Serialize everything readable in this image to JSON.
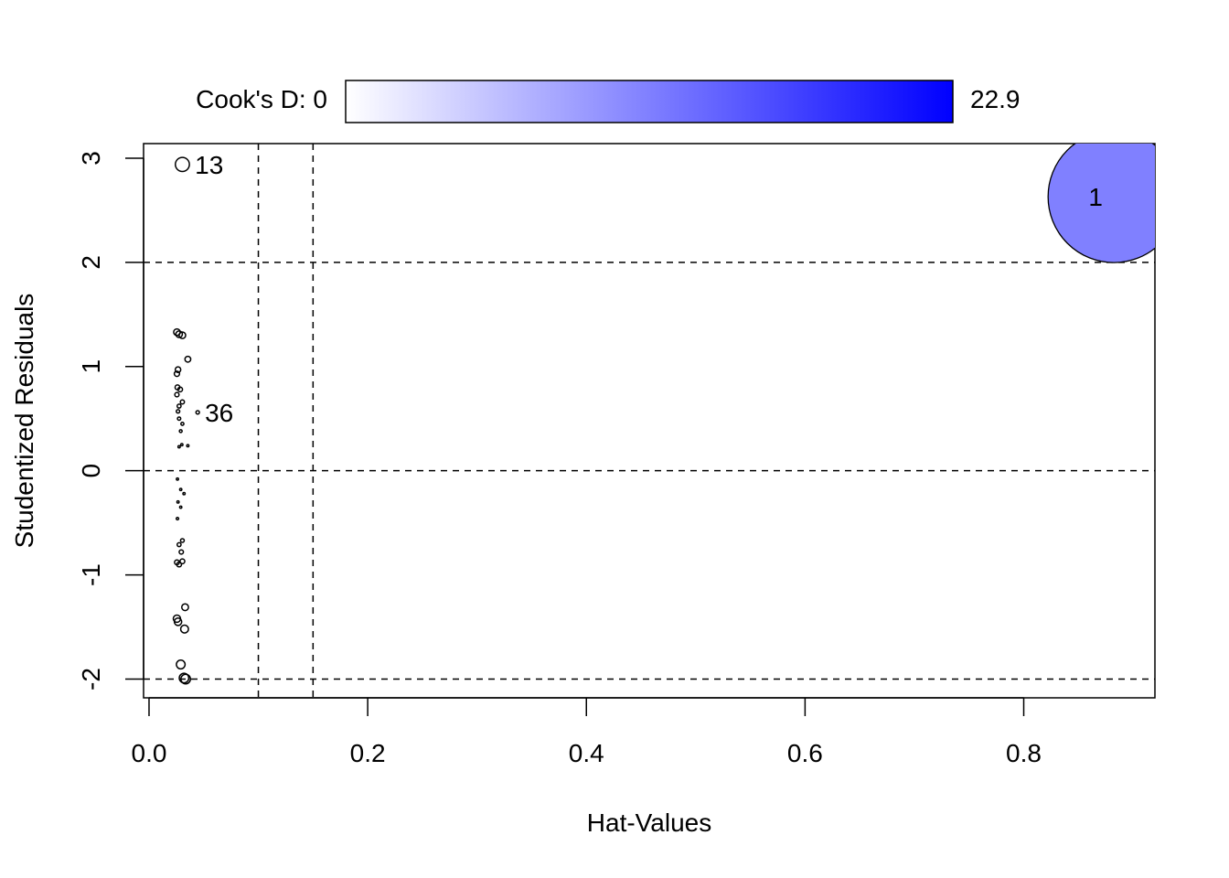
{
  "chart_data": {
    "type": "scatter",
    "xlabel": "Hat-Values",
    "ylabel": "Studentized Residuals",
    "xlim": [
      -0.005,
      0.92
    ],
    "ylim": [
      -2.18,
      3.14
    ],
    "xticks": [
      "0.0",
      "0.2",
      "0.4",
      "0.6",
      "0.8"
    ],
    "xtick_values": [
      0.0,
      0.2,
      0.4,
      0.6,
      0.8
    ],
    "yticks": [
      "-2",
      "-1",
      "0",
      "1",
      "2",
      "3"
    ],
    "ytick_values": [
      -2,
      -1,
      0,
      1,
      2,
      3
    ],
    "reference_lines": {
      "horizontal": [
        -2,
        0,
        2
      ],
      "vertical": [
        0.1,
        0.15
      ],
      "style": "dashed"
    },
    "colorbar": {
      "label": "Cook's D: 0",
      "max_label": "22.9",
      "min_value": 0,
      "max_value": 22.9,
      "color_low": "#ffffff",
      "color_high": "#0000ff",
      "placement": "top"
    },
    "point_fill_color": "#8080ff",
    "points": [
      {
        "x": 0.8825,
        "y": 2.63,
        "cooks_d": 11.4,
        "label": "1"
      },
      {
        "x": 0.0305,
        "y": 2.94,
        "cooks_d": 0.13,
        "label": "13"
      },
      {
        "x": 0.0445,
        "y": 0.56,
        "cooks_d": 0.008,
        "label": "36"
      },
      {
        "x": 0.0255,
        "y": 1.33,
        "cooks_d": 0.028
      },
      {
        "x": 0.0275,
        "y": 1.31,
        "cooks_d": 0.028
      },
      {
        "x": 0.0305,
        "y": 1.3,
        "cooks_d": 0.028
      },
      {
        "x": 0.0355,
        "y": 1.07,
        "cooks_d": 0.022
      },
      {
        "x": 0.0265,
        "y": 0.97,
        "cooks_d": 0.02
      },
      {
        "x": 0.0255,
        "y": 0.93,
        "cooks_d": 0.018
      },
      {
        "x": 0.026,
        "y": 0.8,
        "cooks_d": 0.015
      },
      {
        "x": 0.0285,
        "y": 0.78,
        "cooks_d": 0.014
      },
      {
        "x": 0.0255,
        "y": 0.73,
        "cooks_d": 0.012
      },
      {
        "x": 0.0305,
        "y": 0.66,
        "cooks_d": 0.011
      },
      {
        "x": 0.0275,
        "y": 0.62,
        "cooks_d": 0.01
      },
      {
        "x": 0.0265,
        "y": 0.57,
        "cooks_d": 0.008
      },
      {
        "x": 0.0275,
        "y": 0.5,
        "cooks_d": 0.007
      },
      {
        "x": 0.0305,
        "y": 0.45,
        "cooks_d": 0.006
      },
      {
        "x": 0.029,
        "y": 0.38,
        "cooks_d": 0.005
      },
      {
        "x": 0.0275,
        "y": 0.23,
        "cooks_d": 0.002
      },
      {
        "x": 0.03,
        "y": 0.25,
        "cooks_d": 0.002
      },
      {
        "x": 0.0355,
        "y": 0.24,
        "cooks_d": 0.002
      },
      {
        "x": 0.026,
        "y": -0.08,
        "cooks_d": 0.0003
      },
      {
        "x": 0.029,
        "y": -0.18,
        "cooks_d": 0.001
      },
      {
        "x": 0.032,
        "y": -0.22,
        "cooks_d": 0.001
      },
      {
        "x": 0.0265,
        "y": -0.3,
        "cooks_d": 0.002
      },
      {
        "x": 0.029,
        "y": -0.35,
        "cooks_d": 0.003
      },
      {
        "x": 0.026,
        "y": -0.46,
        "cooks_d": 0.004
      },
      {
        "x": 0.0305,
        "y": -0.67,
        "cooks_d": 0.009
      },
      {
        "x": 0.0275,
        "y": -0.71,
        "cooks_d": 0.01
      },
      {
        "x": 0.0295,
        "y": -0.78,
        "cooks_d": 0.012
      },
      {
        "x": 0.0255,
        "y": -0.88,
        "cooks_d": 0.015
      },
      {
        "x": 0.0275,
        "y": -0.9,
        "cooks_d": 0.015
      },
      {
        "x": 0.0305,
        "y": -0.87,
        "cooks_d": 0.015
      },
      {
        "x": 0.033,
        "y": -1.31,
        "cooks_d": 0.03
      },
      {
        "x": 0.0255,
        "y": -1.42,
        "cooks_d": 0.035
      },
      {
        "x": 0.0265,
        "y": -1.45,
        "cooks_d": 0.036
      },
      {
        "x": 0.0325,
        "y": -1.52,
        "cooks_d": 0.04
      },
      {
        "x": 0.029,
        "y": -1.86,
        "cooks_d": 0.05
      },
      {
        "x": 0.032,
        "y": -1.99,
        "cooks_d": 0.06
      },
      {
        "x": 0.0335,
        "y": -2.0,
        "cooks_d": 0.06
      }
    ]
  }
}
